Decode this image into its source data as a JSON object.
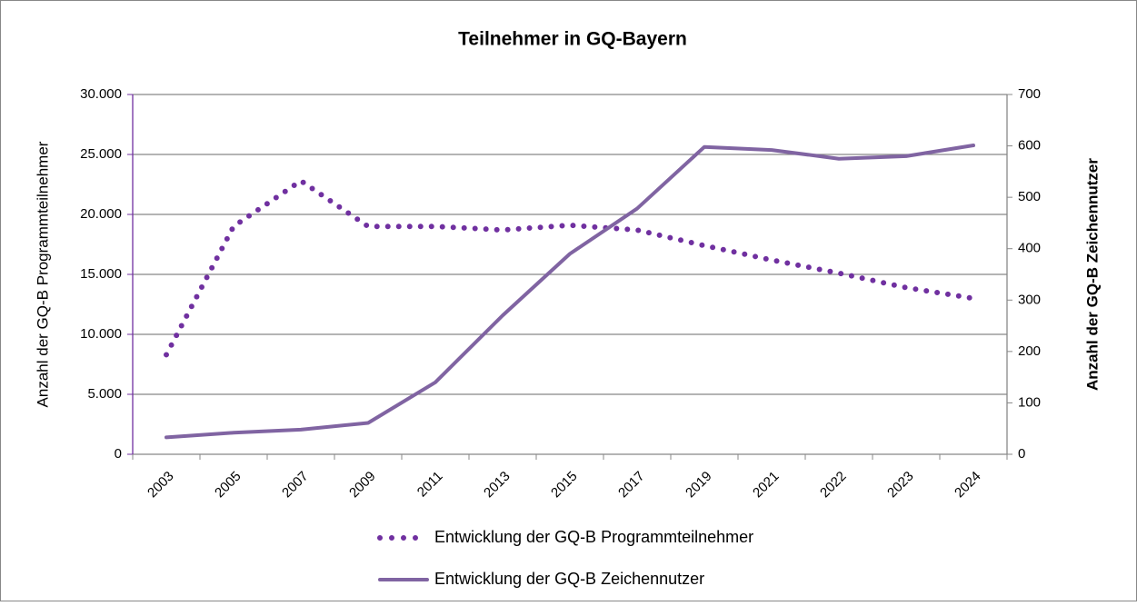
{
  "chart_data": {
    "type": "line",
    "title": "Teilnehmer in GQ-Bayern",
    "ylabel": "Anzahl der GQ-B Programmteilnehmer",
    "y2label": "Anzahl der GQ-B Zeichennutzer",
    "categories": [
      "2003",
      "2005",
      "2007",
      "2009",
      "2011",
      "2013",
      "2015",
      "2017",
      "2019",
      "2021",
      "2022",
      "2023",
      "2024"
    ],
    "ylim": [
      0,
      30000
    ],
    "yticks": [
      0,
      {
        "value": 5000,
        "label": "5.000"
      },
      {
        "value": 10000,
        "label": "10.000"
      },
      {
        "value": 15000,
        "label": "15.000"
      },
      {
        "value": 20000,
        "label": "20.000"
      },
      {
        "value": 25000,
        "label": "25.000"
      },
      {
        "value": 30000,
        "label": "30.000"
      }
    ],
    "y2lim": [
      0,
      700
    ],
    "y2ticks": [
      0,
      100,
      200,
      300,
      400,
      500,
      600,
      700
    ],
    "grid": true,
    "legend": "bottom",
    "series": [
      {
        "name": "Entwicklung der GQ-B Programmteilnehmer",
        "color": "#7030a0",
        "style": "dotted",
        "values": [
          8300,
          19000,
          22800,
          19000,
          19000,
          18700,
          19100,
          18700,
          17400,
          16200,
          15100,
          13900,
          13000
        ]
      },
      {
        "name": "Entwicklung der GQ-B Zeichennutzer",
        "color": "#8064a2",
        "style": "solid",
        "axis": "y2",
        "values": [
          33,
          42,
          48,
          61,
          140,
          270,
          390,
          478,
          598,
          592,
          575,
          580,
          601
        ]
      }
    ]
  }
}
